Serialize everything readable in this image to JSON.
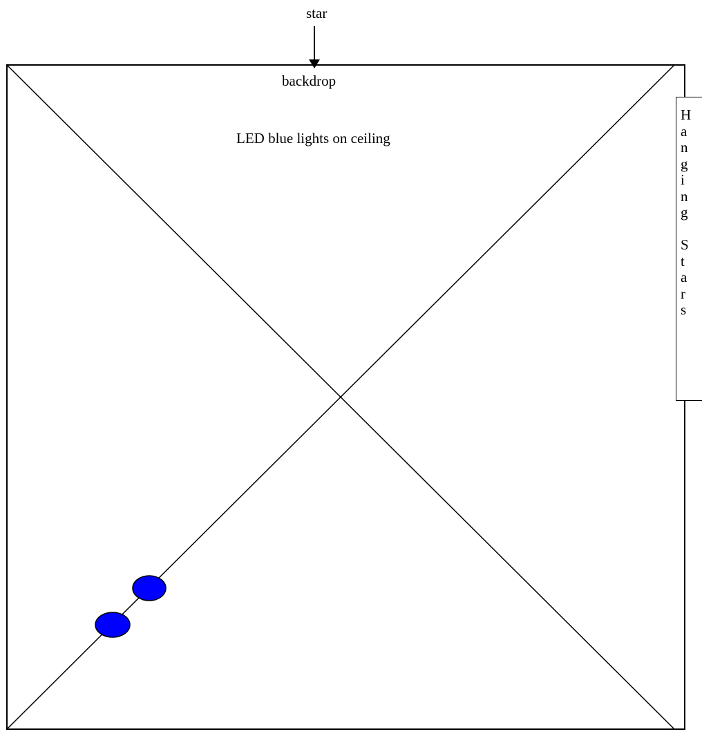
{
  "labels": {
    "star": "star",
    "backdrop": "backdrop",
    "ceiling_lights": "LED blue lights on ceiling",
    "hanging_stars": "H\na\nn\ng\ni\nn\ng\n\nS\nt\na\nr\ns"
  },
  "colors": {
    "line": "#000000",
    "light_fill": "#0000ff",
    "background": "#ffffff"
  },
  "light_count": 2
}
